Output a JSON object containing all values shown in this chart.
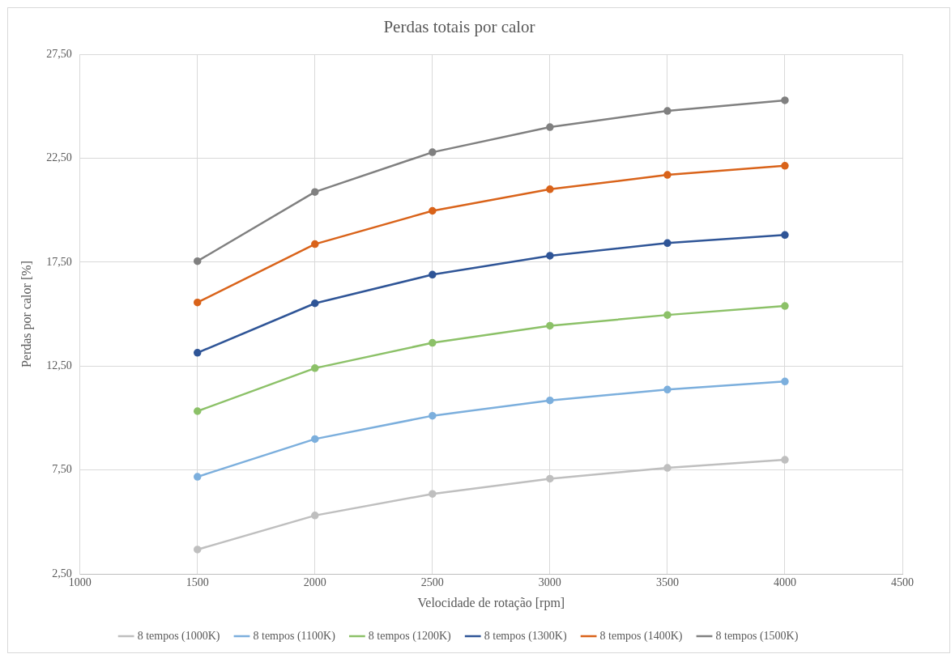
{
  "chart_data": {
    "type": "line",
    "title": "Perdas totais por calor",
    "xlabel": "Velocidade de rotação [rpm]",
    "ylabel": "Perdas por calor [%]",
    "x": [
      1500,
      2000,
      2500,
      3000,
      3500,
      4000
    ],
    "series": [
      {
        "name": "8 tempos (1000K)",
        "color": "#bfbfbf",
        "values": [
          3.67,
          5.31,
          6.35,
          7.08,
          7.6,
          7.99
        ]
      },
      {
        "name": "8 tempos (1100K)",
        "color": "#7cafdd",
        "values": [
          7.17,
          8.99,
          10.11,
          10.85,
          11.37,
          11.76
        ]
      },
      {
        "name": "8 tempos (1200K)",
        "color": "#8cc168",
        "values": [
          10.33,
          12.4,
          13.62,
          14.44,
          14.96,
          15.39
        ]
      },
      {
        "name": "8 tempos (1300K)",
        "color": "#2f5597",
        "values": [
          13.14,
          15.52,
          16.9,
          17.81,
          18.42,
          18.81
        ]
      },
      {
        "name": "8 tempos (1400K)",
        "color": "#d9631a",
        "values": [
          15.56,
          18.37,
          19.97,
          21.01,
          21.7,
          22.14
        ]
      },
      {
        "name": "8 tempos (1500K)",
        "color": "#808080",
        "values": [
          17.55,
          20.88,
          22.79,
          24.0,
          24.78,
          25.29
        ]
      }
    ],
    "xlim": [
      1000,
      4500
    ],
    "xticks": [
      1000,
      1500,
      2000,
      2500,
      3000,
      3500,
      4000,
      4500
    ],
    "ylim": [
      2.5,
      27.5
    ],
    "yticks": [
      {
        "value": 2.5,
        "label": "2,50"
      },
      {
        "value": 7.5,
        "label": "7,50"
      },
      {
        "value": 12.5,
        "label": "12,50"
      },
      {
        "value": 17.5,
        "label": "17,50"
      },
      {
        "value": 22.5,
        "label": "22,50"
      },
      {
        "value": 27.5,
        "label": "27,50"
      }
    ],
    "grid": true,
    "legend": "bottom",
    "marker": "circle",
    "line_style": "solid"
  }
}
